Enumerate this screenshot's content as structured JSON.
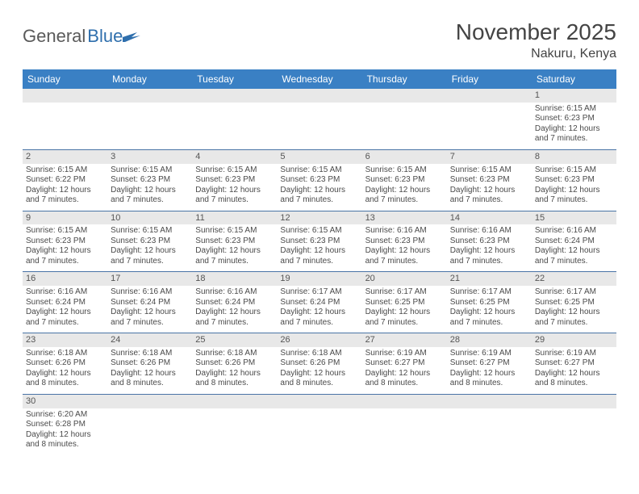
{
  "logo": {
    "part1": "General",
    "part2": "Blue"
  },
  "title": "November 2025",
  "location": "Nakuru, Kenya",
  "colors": {
    "header_bg": "#3a80c4",
    "header_text": "#ffffff",
    "daynum_bg": "#e8e8e8",
    "row_divider": "#4a74a6",
    "text": "#4a4a4a",
    "logo_gray": "#5a5a5a",
    "logo_blue": "#2f6fad"
  },
  "weekdays": [
    "Sunday",
    "Monday",
    "Tuesday",
    "Wednesday",
    "Thursday",
    "Friday",
    "Saturday"
  ],
  "weeks": [
    [
      {
        "empty": true
      },
      {
        "empty": true
      },
      {
        "empty": true
      },
      {
        "empty": true
      },
      {
        "empty": true
      },
      {
        "empty": true
      },
      {
        "day": "1",
        "sunrise": "Sunrise: 6:15 AM",
        "sunset": "Sunset: 6:23 PM",
        "daylight1": "Daylight: 12 hours",
        "daylight2": "and 7 minutes."
      }
    ],
    [
      {
        "day": "2",
        "sunrise": "Sunrise: 6:15 AM",
        "sunset": "Sunset: 6:22 PM",
        "daylight1": "Daylight: 12 hours",
        "daylight2": "and 7 minutes."
      },
      {
        "day": "3",
        "sunrise": "Sunrise: 6:15 AM",
        "sunset": "Sunset: 6:23 PM",
        "daylight1": "Daylight: 12 hours",
        "daylight2": "and 7 minutes."
      },
      {
        "day": "4",
        "sunrise": "Sunrise: 6:15 AM",
        "sunset": "Sunset: 6:23 PM",
        "daylight1": "Daylight: 12 hours",
        "daylight2": "and 7 minutes."
      },
      {
        "day": "5",
        "sunrise": "Sunrise: 6:15 AM",
        "sunset": "Sunset: 6:23 PM",
        "daylight1": "Daylight: 12 hours",
        "daylight2": "and 7 minutes."
      },
      {
        "day": "6",
        "sunrise": "Sunrise: 6:15 AM",
        "sunset": "Sunset: 6:23 PM",
        "daylight1": "Daylight: 12 hours",
        "daylight2": "and 7 minutes."
      },
      {
        "day": "7",
        "sunrise": "Sunrise: 6:15 AM",
        "sunset": "Sunset: 6:23 PM",
        "daylight1": "Daylight: 12 hours",
        "daylight2": "and 7 minutes."
      },
      {
        "day": "8",
        "sunrise": "Sunrise: 6:15 AM",
        "sunset": "Sunset: 6:23 PM",
        "daylight1": "Daylight: 12 hours",
        "daylight2": "and 7 minutes."
      }
    ],
    [
      {
        "day": "9",
        "sunrise": "Sunrise: 6:15 AM",
        "sunset": "Sunset: 6:23 PM",
        "daylight1": "Daylight: 12 hours",
        "daylight2": "and 7 minutes."
      },
      {
        "day": "10",
        "sunrise": "Sunrise: 6:15 AM",
        "sunset": "Sunset: 6:23 PM",
        "daylight1": "Daylight: 12 hours",
        "daylight2": "and 7 minutes."
      },
      {
        "day": "11",
        "sunrise": "Sunrise: 6:15 AM",
        "sunset": "Sunset: 6:23 PM",
        "daylight1": "Daylight: 12 hours",
        "daylight2": "and 7 minutes."
      },
      {
        "day": "12",
        "sunrise": "Sunrise: 6:15 AM",
        "sunset": "Sunset: 6:23 PM",
        "daylight1": "Daylight: 12 hours",
        "daylight2": "and 7 minutes."
      },
      {
        "day": "13",
        "sunrise": "Sunrise: 6:16 AM",
        "sunset": "Sunset: 6:23 PM",
        "daylight1": "Daylight: 12 hours",
        "daylight2": "and 7 minutes."
      },
      {
        "day": "14",
        "sunrise": "Sunrise: 6:16 AM",
        "sunset": "Sunset: 6:23 PM",
        "daylight1": "Daylight: 12 hours",
        "daylight2": "and 7 minutes."
      },
      {
        "day": "15",
        "sunrise": "Sunrise: 6:16 AM",
        "sunset": "Sunset: 6:24 PM",
        "daylight1": "Daylight: 12 hours",
        "daylight2": "and 7 minutes."
      }
    ],
    [
      {
        "day": "16",
        "sunrise": "Sunrise: 6:16 AM",
        "sunset": "Sunset: 6:24 PM",
        "daylight1": "Daylight: 12 hours",
        "daylight2": "and 7 minutes."
      },
      {
        "day": "17",
        "sunrise": "Sunrise: 6:16 AM",
        "sunset": "Sunset: 6:24 PM",
        "daylight1": "Daylight: 12 hours",
        "daylight2": "and 7 minutes."
      },
      {
        "day": "18",
        "sunrise": "Sunrise: 6:16 AM",
        "sunset": "Sunset: 6:24 PM",
        "daylight1": "Daylight: 12 hours",
        "daylight2": "and 7 minutes."
      },
      {
        "day": "19",
        "sunrise": "Sunrise: 6:17 AM",
        "sunset": "Sunset: 6:24 PM",
        "daylight1": "Daylight: 12 hours",
        "daylight2": "and 7 minutes."
      },
      {
        "day": "20",
        "sunrise": "Sunrise: 6:17 AM",
        "sunset": "Sunset: 6:25 PM",
        "daylight1": "Daylight: 12 hours",
        "daylight2": "and 7 minutes."
      },
      {
        "day": "21",
        "sunrise": "Sunrise: 6:17 AM",
        "sunset": "Sunset: 6:25 PM",
        "daylight1": "Daylight: 12 hours",
        "daylight2": "and 7 minutes."
      },
      {
        "day": "22",
        "sunrise": "Sunrise: 6:17 AM",
        "sunset": "Sunset: 6:25 PM",
        "daylight1": "Daylight: 12 hours",
        "daylight2": "and 7 minutes."
      }
    ],
    [
      {
        "day": "23",
        "sunrise": "Sunrise: 6:18 AM",
        "sunset": "Sunset: 6:26 PM",
        "daylight1": "Daylight: 12 hours",
        "daylight2": "and 8 minutes."
      },
      {
        "day": "24",
        "sunrise": "Sunrise: 6:18 AM",
        "sunset": "Sunset: 6:26 PM",
        "daylight1": "Daylight: 12 hours",
        "daylight2": "and 8 minutes."
      },
      {
        "day": "25",
        "sunrise": "Sunrise: 6:18 AM",
        "sunset": "Sunset: 6:26 PM",
        "daylight1": "Daylight: 12 hours",
        "daylight2": "and 8 minutes."
      },
      {
        "day": "26",
        "sunrise": "Sunrise: 6:18 AM",
        "sunset": "Sunset: 6:26 PM",
        "daylight1": "Daylight: 12 hours",
        "daylight2": "and 8 minutes."
      },
      {
        "day": "27",
        "sunrise": "Sunrise: 6:19 AM",
        "sunset": "Sunset: 6:27 PM",
        "daylight1": "Daylight: 12 hours",
        "daylight2": "and 8 minutes."
      },
      {
        "day": "28",
        "sunrise": "Sunrise: 6:19 AM",
        "sunset": "Sunset: 6:27 PM",
        "daylight1": "Daylight: 12 hours",
        "daylight2": "and 8 minutes."
      },
      {
        "day": "29",
        "sunrise": "Sunrise: 6:19 AM",
        "sunset": "Sunset: 6:27 PM",
        "daylight1": "Daylight: 12 hours",
        "daylight2": "and 8 minutes."
      }
    ],
    [
      {
        "day": "30",
        "sunrise": "Sunrise: 6:20 AM",
        "sunset": "Sunset: 6:28 PM",
        "daylight1": "Daylight: 12 hours",
        "daylight2": "and 8 minutes."
      },
      {
        "empty": true
      },
      {
        "empty": true
      },
      {
        "empty": true
      },
      {
        "empty": true
      },
      {
        "empty": true
      },
      {
        "empty": true
      }
    ]
  ]
}
